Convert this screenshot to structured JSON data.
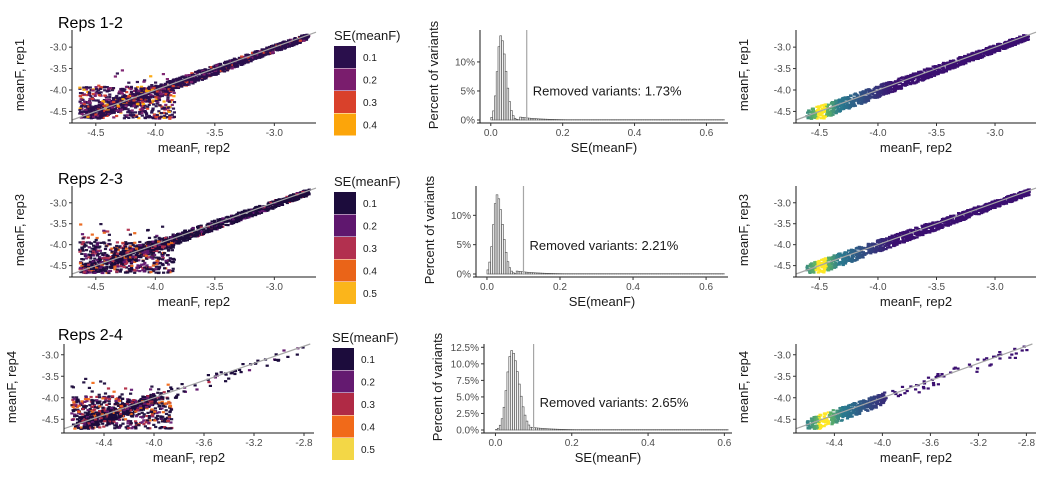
{
  "chart_data": [
    {
      "type": "heatmap",
      "title": "Reps 1-2",
      "xlabel": "meanF, rep2",
      "ylabel": "meanF, rep1",
      "x_ticks": [
        "-4.5",
        "-4.0",
        "-3.5",
        "-3.0"
      ],
      "y_ticks": [
        "-3.0",
        "-3.5",
        "-4.0",
        "-4.5"
      ],
      "xlim": [
        -4.7,
        -2.65
      ],
      "ylim": [
        -4.7,
        -2.6
      ],
      "legend": {
        "title": "SE(meanF)",
        "labels": [
          "0.1",
          "0.2",
          "0.3",
          "0.4"
        ],
        "colors": [
          "#2a0f4c",
          "#7a1d6d",
          "#d9412b",
          "#fca50a"
        ]
      },
      "grid": false
    },
    {
      "type": "bar",
      "xlabel": "SE(meanF)",
      "ylabel": "Percent of variants",
      "x_ticks": [
        "0.0",
        "0.2",
        "0.4",
        "0.6"
      ],
      "y_ticks": [
        "0%",
        "5%",
        "10%"
      ],
      "xlim": [
        -0.03,
        0.66
      ],
      "ylim": [
        0,
        15.5
      ],
      "annotation": "Removed variants: 1.73%",
      "cutoff": 0.1,
      "bar_color": "#4d4d4d",
      "hist": {
        "bin_width": 0.005,
        "peak_x": 0.025,
        "peak": 14.5,
        "spread": 0.012
      },
      "grid": false
    },
    {
      "type": "heatmap",
      "xlabel": "meanF, rep2",
      "ylabel": "meanF, rep1",
      "x_ticks": [
        "-4.5",
        "-4.0",
        "-3.5",
        "-3.0"
      ],
      "y_ticks": [
        "-3.0",
        "-3.5",
        "-4.0",
        "-4.5"
      ],
      "xlim": [
        -4.7,
        -2.65
      ],
      "ylim": [
        -4.7,
        -2.6
      ],
      "grid": false
    },
    {
      "type": "heatmap",
      "title": "Reps 2-3",
      "xlabel": "meanF, rep2",
      "ylabel": "meanF, rep3",
      "x_ticks": [
        "-4.5",
        "-4.0",
        "-3.5",
        "-3.0"
      ],
      "y_ticks": [
        "-3.0",
        "-3.5",
        "-4.0",
        "-4.5"
      ],
      "xlim": [
        -4.7,
        -2.65
      ],
      "ylim": [
        -4.7,
        -2.6
      ],
      "legend": {
        "title": "SE(meanF)",
        "labels": [
          "0.1",
          "0.2",
          "0.3",
          "0.4",
          "0.5"
        ],
        "colors": [
          "#1c0c3c",
          "#5f176e",
          "#b2304f",
          "#ea6418",
          "#fbb51b"
        ]
      },
      "grid": false
    },
    {
      "type": "bar",
      "xlabel": "SE(meanF)",
      "ylabel": "Percent of variants",
      "x_ticks": [
        "0.0",
        "0.2",
        "0.4",
        "0.6"
      ],
      "y_ticks": [
        "0%",
        "5%",
        "10%"
      ],
      "xlim": [
        -0.03,
        0.66
      ],
      "ylim": [
        0,
        15
      ],
      "annotation": "Removed variants: 2.21%",
      "cutoff": 0.1,
      "bar_color": "#4d4d4d",
      "hist": {
        "bin_width": 0.005,
        "peak_x": 0.025,
        "peak": 13.5,
        "spread": 0.013
      },
      "grid": false
    },
    {
      "type": "heatmap",
      "xlabel": "meanF, rep2",
      "ylabel": "meanF, rep3",
      "x_ticks": [
        "-4.5",
        "-4.0",
        "-3.5",
        "-3.0"
      ],
      "y_ticks": [
        "-3.0",
        "-3.5",
        "-4.0",
        "-4.5"
      ],
      "xlim": [
        -4.7,
        -2.65
      ],
      "ylim": [
        -4.7,
        -2.6
      ],
      "grid": false
    },
    {
      "type": "heatmap",
      "title": "Reps 2-4",
      "xlabel": "meanF, rep2",
      "ylabel": "meanF, rep4",
      "x_ticks": [
        "-4.4",
        "-4.0",
        "-3.6",
        "-3.2",
        "-2.8"
      ],
      "y_ticks": [
        "-3.0",
        "-3.5",
        "-4.0",
        "-4.5"
      ],
      "xlim": [
        -4.72,
        -2.72
      ],
      "ylim": [
        -4.75,
        -2.75
      ],
      "legend": {
        "title": "SE(meanF)",
        "labels": [
          "0.1",
          "0.2",
          "0.3",
          "0.4",
          "0.5"
        ],
        "colors": [
          "#1c0c3c",
          "#641a70",
          "#b02a45",
          "#f16a19",
          "#f3d746"
        ]
      },
      "grid": false
    },
    {
      "type": "bar",
      "xlabel": "SE(meanF)",
      "ylabel": "Percent of variants",
      "x_ticks": [
        "0.0",
        "0.2",
        "0.4",
        "0.6"
      ],
      "y_ticks": [
        "0.0%",
        "2.5%",
        "5.0%",
        "7.5%",
        "10.0%",
        "12.5%"
      ],
      "xlim": [
        -0.03,
        0.62
      ],
      "ylim": [
        0,
        13
      ],
      "annotation": "Removed variants: 2.65%",
      "cutoff": 0.1,
      "bar_color": "#4d4d4d",
      "hist": {
        "bin_width": 0.005,
        "peak_x": 0.04,
        "peak": 12.0,
        "spread": 0.016
      },
      "grid": false
    },
    {
      "type": "heatmap",
      "xlabel": "meanF, rep2",
      "ylabel": "meanF, rep4",
      "x_ticks": [
        "-4.4",
        "-4.0",
        "-3.6",
        "-3.2",
        "-2.8"
      ],
      "y_ticks": [
        "-3.0",
        "-3.5",
        "-4.0",
        "-4.5"
      ],
      "xlim": [
        -4.72,
        -2.72
      ],
      "ylim": [
        -4.75,
        -2.75
      ],
      "grid": false
    }
  ]
}
